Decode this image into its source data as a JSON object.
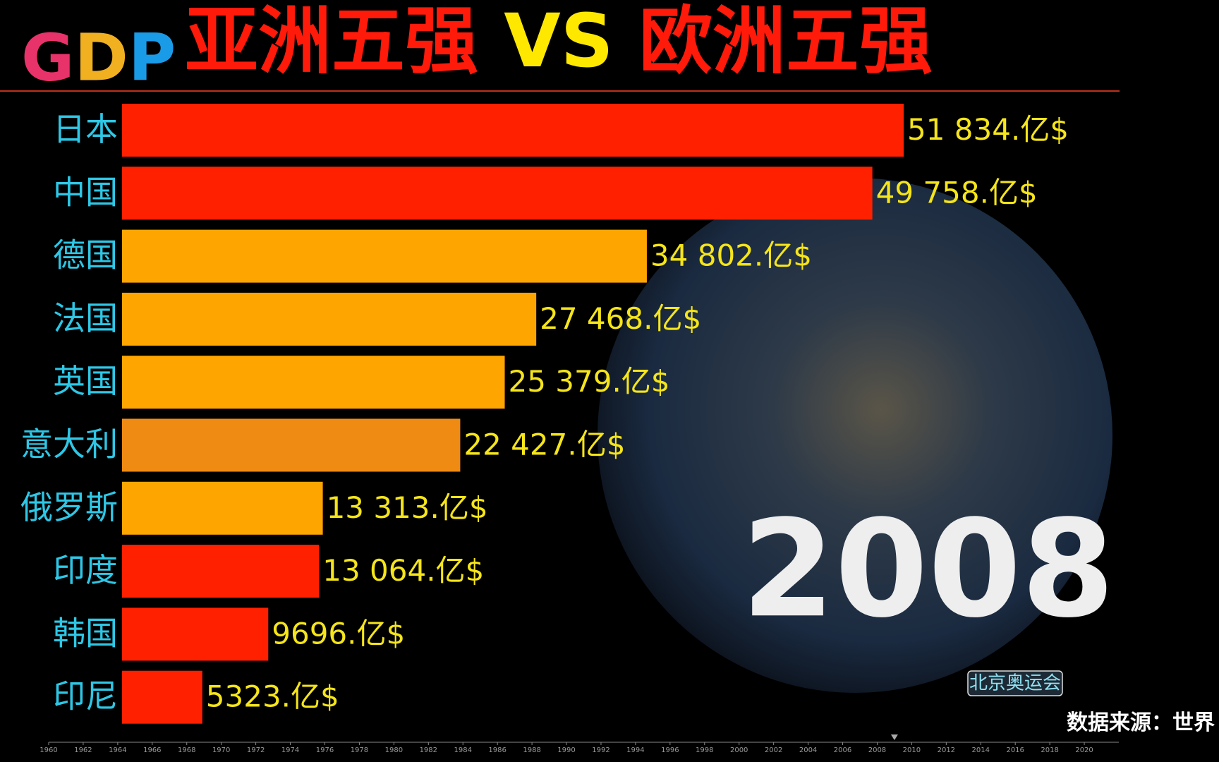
{
  "header": {
    "logo": "GDP",
    "title": [
      "亚洲五强",
      "VS",
      "欧洲五强"
    ]
  },
  "chart_data": [
    {
      "type": "bar",
      "orientation": "horizontal",
      "categories": [
        "日本",
        "中国",
        "德国",
        "法国",
        "英国",
        "意大利",
        "俄罗斯",
        "印度",
        "韩国",
        "印尼"
      ],
      "values": [
        51834,
        49758,
        34802,
        27468,
        25379,
        22427,
        13313,
        13064,
        9696,
        5323
      ],
      "value_labels": [
        "51 834.亿$",
        "49 758.亿$",
        "34 802.亿$",
        "27 468.亿$",
        "25 379.亿$",
        "22 427.亿$",
        "13 313.亿$",
        "13 064.亿$",
        "9696.亿$",
        "5323.亿$"
      ],
      "colors": [
        "#ff2000",
        "#ff2000",
        "#ffa500",
        "#ffa500",
        "#ffa500",
        "#ef8a12",
        "#ffa500",
        "#ff2000",
        "#ff2000",
        "#ff2000"
      ],
      "period": "2008",
      "event": "北京奥运会",
      "source": "数据来源：世界"
    },
    {
      "type": "timeline",
      "xlim": [
        1960,
        2022
      ],
      "xticks": [
        1960,
        1962,
        1964,
        1966,
        1968,
        1970,
        1972,
        1974,
        1976,
        1978,
        1980,
        1982,
        1984,
        1986,
        1988,
        1990,
        1992,
        1994,
        1996,
        1998,
        2000,
        2002,
        2004,
        2006,
        2008,
        2010,
        2012,
        2014,
        2016,
        2018,
        2020
      ],
      "marker": 2009
    }
  ]
}
